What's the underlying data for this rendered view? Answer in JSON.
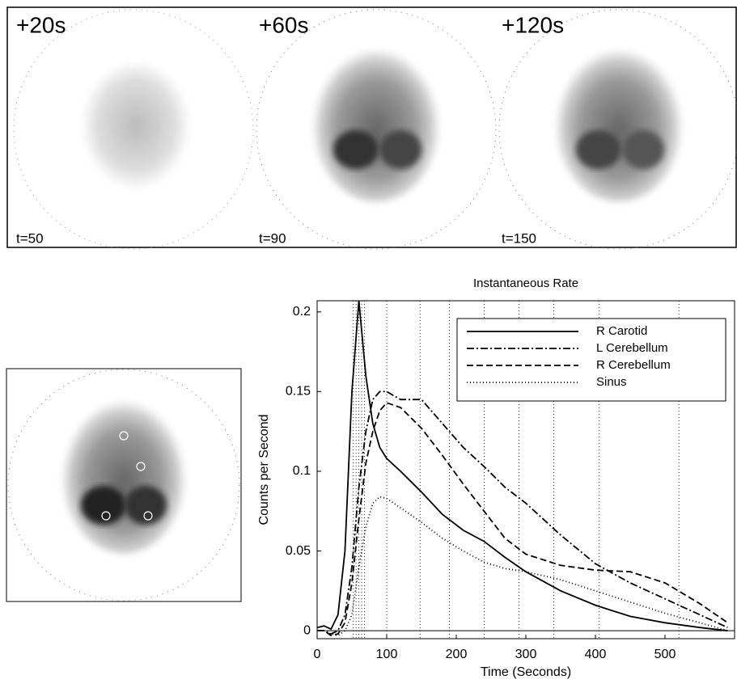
{
  "panels": [
    {
      "label": "+20s",
      "time": "t=50"
    },
    {
      "label": "+60s",
      "time": "t=90"
    },
    {
      "label": "+120s",
      "time": "t=150"
    }
  ],
  "chart_data": {
    "type": "line",
    "title": "Instantaneous Rate",
    "x_label": "Time  (Seconds)",
    "y_label": "Counts per Second",
    "x": [
      0,
      10,
      20,
      30,
      40,
      50,
      60,
      70,
      80,
      90,
      100,
      120,
      150,
      180,
      210,
      240,
      270,
      300,
      350,
      400,
      450,
      500,
      550,
      590
    ],
    "series": [
      {
        "name": "R Carotid",
        "color": "#000000",
        "dash": "none",
        "values": [
          0.002,
          0.003,
          0.001,
          0.01,
          0.05,
          0.15,
          0.207,
          0.16,
          0.13,
          0.115,
          0.108,
          0.1,
          0.087,
          0.073,
          0.063,
          0.056,
          0.046,
          0.037,
          0.025,
          0.016,
          0.009,
          0.005,
          0.002,
          0
        ]
      },
      {
        "name": "L Cerebellum",
        "color": "#000000",
        "dash": "9 3 2 3",
        "values": [
          0,
          0,
          -0.002,
          0,
          0.01,
          0.04,
          0.09,
          0.125,
          0.145,
          0.15,
          0.15,
          0.145,
          0.145,
          0.13,
          0.115,
          0.103,
          0.09,
          0.08,
          0.06,
          0.042,
          0.03,
          0.02,
          0.01,
          0.002
        ]
      },
      {
        "name": "R Cerebellum",
        "color": "#000000",
        "dash": "8 4",
        "values": [
          0,
          0,
          -0.003,
          -0.002,
          0.005,
          0.03,
          0.07,
          0.105,
          0.125,
          0.138,
          0.143,
          0.14,
          0.127,
          0.11,
          0.092,
          0.075,
          0.058,
          0.048,
          0.041,
          0.038,
          0.037,
          0.03,
          0.017,
          0.005
        ]
      },
      {
        "name": "Sinus",
        "color": "#000000",
        "dash": "1 3",
        "values": [
          0,
          0,
          -0.002,
          -0.003,
          0,
          0.01,
          0.04,
          0.065,
          0.08,
          0.084,
          0.083,
          0.077,
          0.068,
          0.058,
          0.05,
          0.043,
          0.039,
          0.037,
          0.032,
          0.025,
          0.018,
          0.011,
          0.005,
          0
        ]
      }
    ],
    "frame_lines": [
      52,
      56,
      60,
      64,
      68,
      100,
      148,
      190,
      240,
      290,
      340,
      405,
      520
    ],
    "xlim": [
      0,
      600
    ],
    "ylim": [
      -0.005,
      0.207
    ],
    "xticks": [
      0,
      100,
      200,
      300,
      400,
      500
    ],
    "yticks": [
      0,
      0.05,
      0.1,
      0.15,
      0.2
    ],
    "legend": "top-right"
  }
}
